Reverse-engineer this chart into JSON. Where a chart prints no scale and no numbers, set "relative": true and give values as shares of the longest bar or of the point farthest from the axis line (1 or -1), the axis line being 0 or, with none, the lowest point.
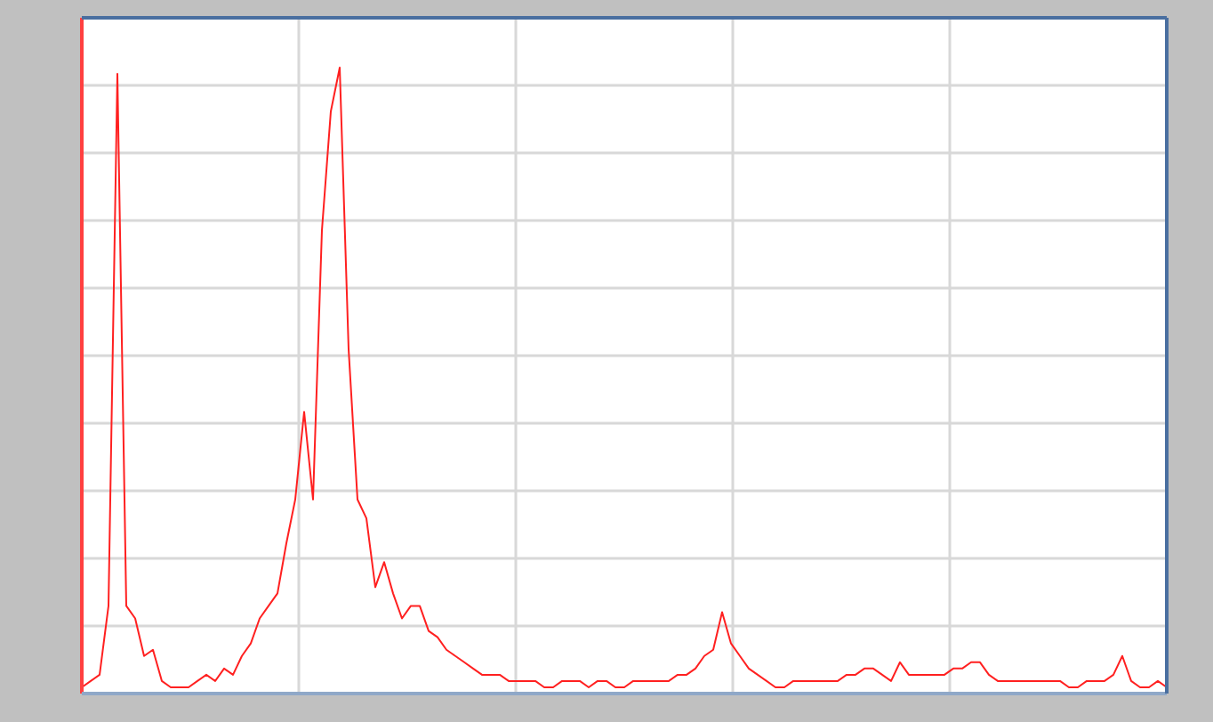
{
  "chart_data": {
    "type": "line",
    "relative": true,
    "grid": true,
    "line_style": "solid",
    "categories": [
      null,
      null,
      null,
      null,
      null,
      null,
      null,
      null,
      null,
      null,
      null,
      null,
      null,
      null,
      null,
      null,
      null,
      null,
      null,
      null,
      null,
      null,
      null,
      null,
      null,
      null,
      null,
      null,
      null,
      null,
      null,
      null,
      null,
      null,
      null,
      null,
      null,
      null,
      null,
      null,
      null,
      null,
      null,
      null,
      null,
      null,
      null,
      null,
      null,
      null,
      null,
      null,
      null,
      null,
      null,
      null,
      null,
      null,
      null,
      null,
      null,
      null,
      null,
      null,
      null,
      null,
      null,
      null,
      null,
      null,
      null,
      null,
      null,
      null,
      null,
      null,
      null,
      null,
      null,
      null,
      null,
      null,
      null,
      null,
      null,
      null,
      null,
      null,
      null,
      null,
      null,
      null,
      null,
      null,
      null,
      null,
      null,
      null,
      null,
      null,
      null,
      null,
      null,
      null,
      null,
      null,
      null,
      null,
      null,
      null,
      null,
      null,
      null,
      null,
      null,
      null,
      null,
      null,
      null,
      null,
      null,
      null,
      null
    ],
    "series": [
      {
        "color": "#ff2020",
        "values": [
          0.01,
          0.02,
          0.03,
          0.14,
          0.99,
          0.14,
          0.12,
          0.06,
          0.07,
          0.02,
          0.01,
          0.01,
          0.01,
          0.02,
          0.03,
          0.02,
          0.04,
          0.03,
          0.06,
          0.08,
          0.12,
          0.14,
          0.16,
          0.24,
          0.31,
          0.45,
          0.31,
          0.74,
          0.93,
          1,
          0.55,
          0.31,
          0.28,
          0.17,
          0.21,
          0.16,
          0.12,
          0.14,
          0.14,
          0.1,
          0.09,
          0.07,
          0.06,
          0.05,
          0.04,
          0.03,
          0.03,
          0.03,
          0.02,
          0.02,
          0.02,
          0.02,
          0.01,
          0.01,
          0.02,
          0.02,
          0.02,
          0.01,
          0.02,
          0.02,
          0.01,
          0.01,
          0.02,
          0.02,
          0.02,
          0.02,
          0.02,
          0.03,
          0.03,
          0.04,
          0.06,
          0.07,
          0.13,
          0.08,
          0.06,
          0.04,
          0.03,
          0.02,
          0.01,
          0.01,
          0.02,
          0.02,
          0.02,
          0.02,
          0.02,
          0.02,
          0.03,
          0.03,
          0.04,
          0.04,
          0.03,
          0.02,
          0.05,
          0.03,
          0.03,
          0.03,
          0.03,
          0.03,
          0.04,
          0.04,
          0.05,
          0.05,
          0.03,
          0.02,
          0.02,
          0.02,
          0.02,
          0.02,
          0.02,
          0.02,
          0.02,
          0.01,
          0.01,
          0.02,
          0.02,
          0.02,
          0.03,
          0.06,
          0.02,
          0.01,
          0.01,
          0.02,
          0.01
        ]
      }
    ]
  }
}
